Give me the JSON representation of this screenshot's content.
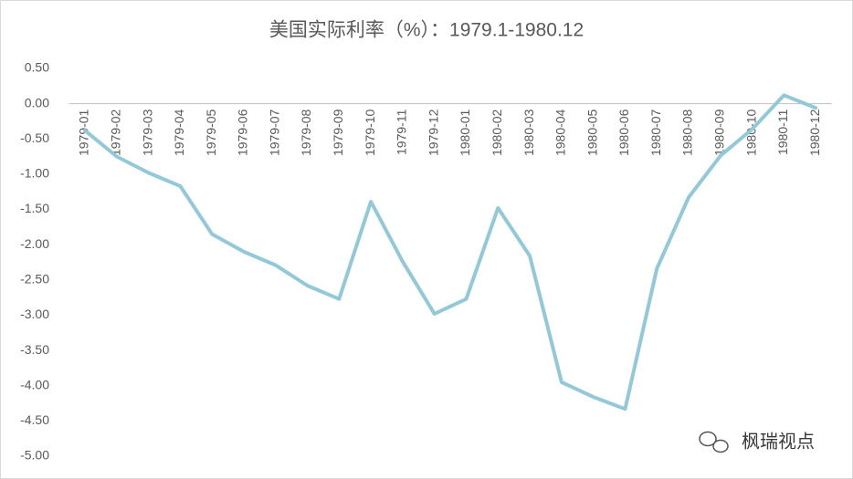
{
  "chart_data": {
    "type": "line",
    "title": "美国实际利率（%）：1979.1-1980.12",
    "categories": [
      "1979-01",
      "1979-02",
      "1979-03",
      "1979-04",
      "1979-05",
      "1979-06",
      "1979-07",
      "1979-08",
      "1979-09",
      "1979-10",
      "1979-11",
      "1979-12",
      "1980-01",
      "1980-02",
      "1980-03",
      "1980-04",
      "1980-05",
      "1980-06",
      "1980-07",
      "1980-08",
      "1980-09",
      "1980-10",
      "1980-11",
      "1980-12"
    ],
    "series": [
      {
        "name": "美国实际利率",
        "color": "#92c9d9",
        "values": [
          -0.38,
          -0.75,
          -0.98,
          -1.17,
          -1.85,
          -2.1,
          -2.29,
          -2.58,
          -2.77,
          -1.39,
          -2.24,
          -2.98,
          -2.77,
          -1.48,
          -2.16,
          -3.95,
          -4.16,
          -4.33,
          -2.34,
          -1.33,
          -0.74,
          -0.36,
          0.12,
          -0.06
        ]
      }
    ],
    "ylim": [
      -5,
      0.5
    ],
    "yticks": [
      {
        "value": 0.5,
        "label": "0.50"
      },
      {
        "value": 0,
        "label": "0.00"
      },
      {
        "value": -0.5,
        "label": "-0.50"
      },
      {
        "value": -1,
        "label": "-1.00"
      },
      {
        "value": -1.5,
        "label": "-1.50"
      },
      {
        "value": -2,
        "label": "-2.00"
      },
      {
        "value": -2.5,
        "label": "-2.50"
      },
      {
        "value": -3,
        "label": "-3.00"
      },
      {
        "value": -3.5,
        "label": "-3.50"
      },
      {
        "value": -4,
        "label": "-4.00"
      },
      {
        "value": -4.5,
        "label": "-4.50"
      },
      {
        "value": -5,
        "label": "-5.00"
      }
    ],
    "grid": false,
    "watermark": "枫瑞视点"
  }
}
